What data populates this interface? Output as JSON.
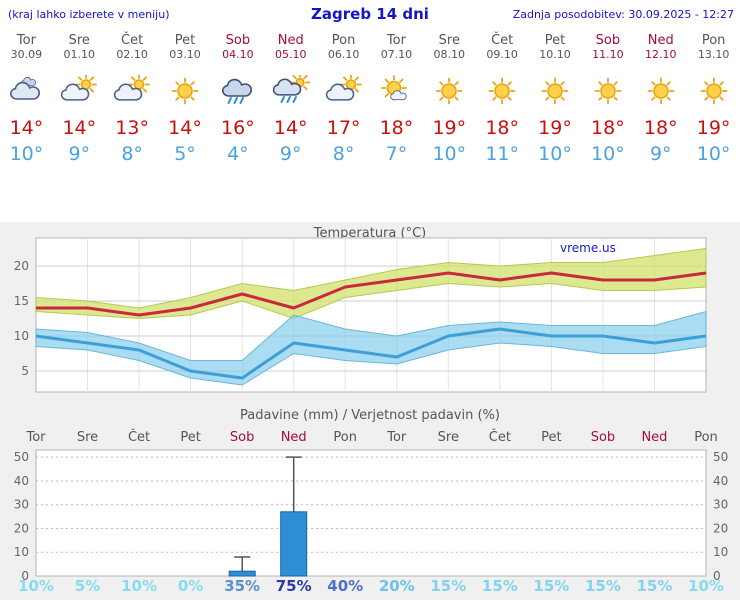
{
  "header": {
    "hint": "(kraj lahko izberete v meniju)",
    "title": "Zagreb 14 dni",
    "updated": "Zadnja posodobitev: 30.09.2025 - 12:27"
  },
  "colors": {
    "header_blue": "#1515c8",
    "weekday_gray": "#555555",
    "weekend_red": "#a50d3c",
    "temp_high_red": "#cc0e0e",
    "temp_low_blue": "#4aa3dc",
    "panel_gray": "#f0f0f0",
    "bar_blue": "#2e8fd5"
  },
  "days": [
    {
      "name": "Tor",
      "date": "30.09",
      "weekend": false,
      "icon": "cloudy",
      "high": "14°",
      "low": "10°"
    },
    {
      "name": "Sre",
      "date": "01.10",
      "weekend": false,
      "icon": "partly-cloudy",
      "high": "14°",
      "low": "9°"
    },
    {
      "name": "Čet",
      "date": "02.10",
      "weekend": false,
      "icon": "partly-cloudy",
      "high": "13°",
      "low": "8°"
    },
    {
      "name": "Pet",
      "date": "03.10",
      "weekend": false,
      "icon": "sunny",
      "high": "14°",
      "low": "5°"
    },
    {
      "name": "Sob",
      "date": "04.10",
      "weekend": true,
      "icon": "rain",
      "high": "16°",
      "low": "4°"
    },
    {
      "name": "Ned",
      "date": "05.10",
      "weekend": true,
      "icon": "sun-rain",
      "high": "14°",
      "low": "9°"
    },
    {
      "name": "Pon",
      "date": "06.10",
      "weekend": false,
      "icon": "partly-cloudy",
      "high": "17°",
      "low": "8°"
    },
    {
      "name": "Tor",
      "date": "07.10",
      "weekend": false,
      "icon": "mostly-sunny",
      "high": "18°",
      "low": "7°"
    },
    {
      "name": "Sre",
      "date": "08.10",
      "weekend": false,
      "icon": "sunny",
      "high": "19°",
      "low": "10°"
    },
    {
      "name": "Čet",
      "date": "09.10",
      "weekend": false,
      "icon": "sunny",
      "high": "18°",
      "low": "11°"
    },
    {
      "name": "Pet",
      "date": "10.10",
      "weekend": false,
      "icon": "sunny",
      "high": "19°",
      "low": "10°"
    },
    {
      "name": "Sob",
      "date": "11.10",
      "weekend": true,
      "icon": "sunny",
      "high": "18°",
      "low": "10°"
    },
    {
      "name": "Ned",
      "date": "12.10",
      "weekend": true,
      "icon": "sunny",
      "high": "18°",
      "low": "9°"
    },
    {
      "name": "Pon",
      "date": "13.10",
      "weekend": false,
      "icon": "sunny",
      "high": "19°",
      "low": "10°"
    }
  ],
  "chart_data": [
    {
      "type": "line",
      "title": "Temperatura (°C)",
      "watermark": "vreme.us",
      "categories": [
        "Tor",
        "Sre",
        "Čet",
        "Pet",
        "Sob",
        "Ned",
        "Pon",
        "Tor",
        "Sre",
        "Čet",
        "Pet",
        "Sob",
        "Ned",
        "Pon"
      ],
      "ylim": [
        2,
        24
      ],
      "yticks": [
        5,
        10,
        15,
        20
      ],
      "grid": true,
      "legend_position": "none",
      "series": [
        {
          "name": "max",
          "color": "#c9293c",
          "values": [
            14,
            14,
            13,
            14,
            16,
            14,
            17,
            18,
            19,
            18,
            19,
            18,
            18,
            19
          ]
        },
        {
          "name": "min",
          "color": "#3d9fd8",
          "values": [
            10,
            9,
            8,
            5,
            4,
            9,
            8,
            7,
            10,
            11,
            10,
            10,
            9,
            10
          ]
        }
      ],
      "bands": [
        {
          "name": "max-range",
          "fill": "rgba(209,224,107,0.75)",
          "stroke": "rgba(175,198,70,0.9)",
          "upper": [
            15.5,
            15,
            14,
            15.5,
            17.5,
            16.5,
            18,
            19.5,
            20.5,
            20,
            20.5,
            20.5,
            21.5,
            22.5
          ],
          "lower": [
            13.5,
            13,
            12.5,
            13,
            15,
            12.5,
            15.5,
            16.5,
            17.5,
            17,
            17.5,
            16.5,
            16.5,
            17
          ]
        },
        {
          "name": "min-range",
          "fill": "rgba(125,201,235,0.65)",
          "stroke": "rgba(98,176,216,0.9)",
          "upper": [
            11,
            10.5,
            9,
            6.5,
            6.5,
            13,
            11,
            10,
            11.5,
            12,
            11.5,
            11.5,
            11.5,
            13.5
          ],
          "lower": [
            8.5,
            8,
            6.5,
            4,
            3,
            7.5,
            6.5,
            6,
            8,
            9,
            8.5,
            7.5,
            7.5,
            8.5
          ]
        }
      ]
    },
    {
      "type": "bar",
      "title": "Padavine (mm) / Verjetnost padavin (%)",
      "categories": [
        "Tor",
        "Sre",
        "Čet",
        "Pet",
        "Sob",
        "Ned",
        "Pon",
        "Tor",
        "Sre",
        "Čet",
        "Pet",
        "Sob",
        "Ned",
        "Pon"
      ],
      "values": [
        0,
        0,
        0,
        0,
        2,
        27,
        0,
        0,
        0,
        0,
        0,
        0,
        0,
        0
      ],
      "whisker_max": [
        0,
        0,
        0,
        0,
        8,
        50,
        0,
        0,
        0,
        0,
        0,
        0,
        0,
        0
      ],
      "probabilities": [
        "10%",
        "5%",
        "10%",
        "0%",
        "35%",
        "75%",
        "40%",
        "20%",
        "15%",
        "15%",
        "15%",
        "15%",
        "15%",
        "10%"
      ],
      "prob_colors": [
        "#86dcef",
        "#86dcef",
        "#86dcef",
        "#86dcef",
        "#5e8fcb",
        "#2b3ba8",
        "#4f6fc8",
        "#6cc4e6",
        "#83d3ec",
        "#83d3ec",
        "#83d3ec",
        "#83d3ec",
        "#83d3ec",
        "#86dcef"
      ],
      "ylim": [
        0,
        53
      ],
      "yticks": [
        0,
        10,
        20,
        30,
        40,
        50
      ],
      "bar_color": "#2e8fd5",
      "grid": "dotted-red"
    }
  ]
}
